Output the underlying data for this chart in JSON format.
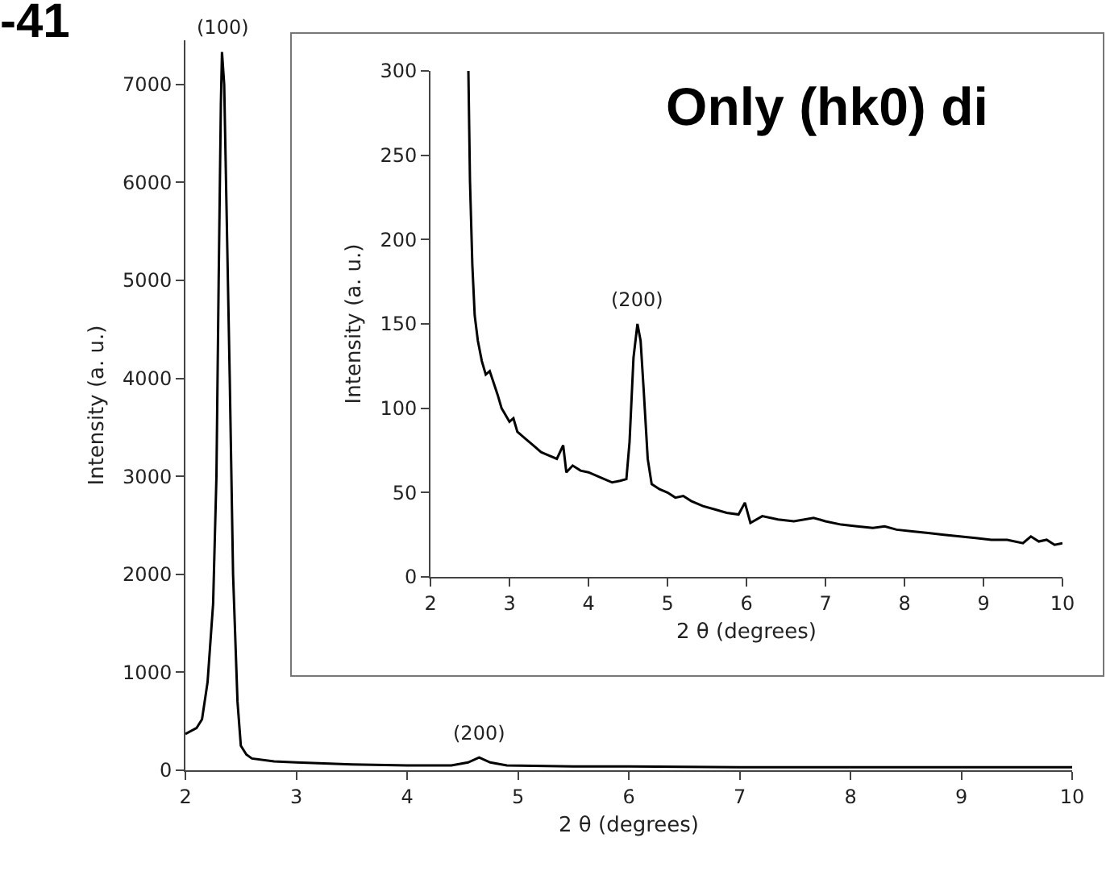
{
  "chart_data": [
    {
      "type": "line",
      "title": "-41",
      "xlabel": "2 θ (degrees)",
      "ylabel": "Intensity (a. u.)",
      "xlim": [
        2,
        10
      ],
      "ylim": [
        0,
        7450
      ],
      "xticks": [
        2,
        3,
        4,
        5,
        6,
        7,
        8,
        9,
        10
      ],
      "yticks": [
        0,
        1000,
        2000,
        3000,
        4000,
        5000,
        6000,
        7000
      ],
      "grid": false,
      "marker": "none",
      "line_style": "solid",
      "annotations": [
        {
          "text": "(100)",
          "x": 2.33,
          "y": 7330
        },
        {
          "text": "(200)",
          "x": 4.65,
          "y": 130
        }
      ],
      "series": [
        {
          "color": "#000000",
          "x": [
            2,
            2.1,
            2.15,
            2.2,
            2.25,
            2.28,
            2.3,
            2.32,
            2.33,
            2.35,
            2.37,
            2.4,
            2.43,
            2.47,
            2.5,
            2.55,
            2.6,
            2.8,
            3,
            3.5,
            4,
            4.4,
            4.55,
            4.65,
            4.75,
            4.9,
            5.5,
            6,
            7,
            8,
            9,
            10
          ],
          "values": [
            370,
            430,
            520,
            900,
            1700,
            3000,
            5000,
            6800,
            7330,
            7000,
            5800,
            4000,
            2000,
            700,
            250,
            160,
            120,
            90,
            80,
            60,
            50,
            50,
            80,
            130,
            80,
            50,
            40,
            40,
            30,
            30,
            30,
            30
          ]
        }
      ]
    },
    {
      "type": "line",
      "title": "Only (hk0) di",
      "xlabel": "2 θ (degrees)",
      "ylabel": "Intensity (a. u.)",
      "xlim": [
        2,
        10
      ],
      "ylim": [
        0,
        300
      ],
      "xticks": [
        2,
        3,
        4,
        5,
        6,
        7,
        8,
        9,
        10
      ],
      "yticks": [
        0,
        50,
        100,
        150,
        200,
        250,
        300
      ],
      "grid": false,
      "marker": "none",
      "line_style": "solid",
      "annotations": [
        {
          "text": "(200)",
          "x": 4.62,
          "y": 150
        }
      ],
      "series": [
        {
          "color": "#000000",
          "x": [
            2.48,
            2.5,
            2.53,
            2.56,
            2.6,
            2.65,
            2.7,
            2.75,
            2.8,
            2.85,
            2.9,
            2.95,
            3.0,
            3.05,
            3.1,
            3.2,
            3.3,
            3.4,
            3.5,
            3.6,
            3.68,
            3.72,
            3.8,
            3.9,
            4.0,
            4.1,
            4.2,
            4.3,
            4.4,
            4.48,
            4.52,
            4.57,
            4.62,
            4.66,
            4.7,
            4.75,
            4.8,
            4.9,
            5.0,
            5.1,
            5.2,
            5.3,
            5.45,
            5.6,
            5.75,
            5.9,
            5.98,
            6.05,
            6.2,
            6.4,
            6.6,
            6.85,
            7.0,
            7.2,
            7.4,
            7.6,
            7.75,
            7.9,
            8.1,
            8.3,
            8.5,
            8.7,
            8.9,
            9.1,
            9.3,
            9.5,
            9.6,
            9.7,
            9.8,
            9.9,
            10
          ],
          "values": [
            300,
            235,
            185,
            155,
            140,
            128,
            120,
            122,
            115,
            108,
            100,
            96,
            92,
            94,
            86,
            82,
            78,
            74,
            72,
            70,
            78,
            62,
            66,
            63,
            62,
            60,
            58,
            56,
            57,
            58,
            80,
            130,
            150,
            140,
            110,
            70,
            55,
            52,
            50,
            47,
            48,
            45,
            42,
            40,
            38,
            37,
            44,
            32,
            36,
            34,
            33,
            35,
            33,
            31,
            30,
            29,
            30,
            28,
            27,
            26,
            25,
            24,
            23,
            22,
            22,
            20,
            24,
            21,
            22,
            19,
            20
          ]
        }
      ]
    }
  ]
}
